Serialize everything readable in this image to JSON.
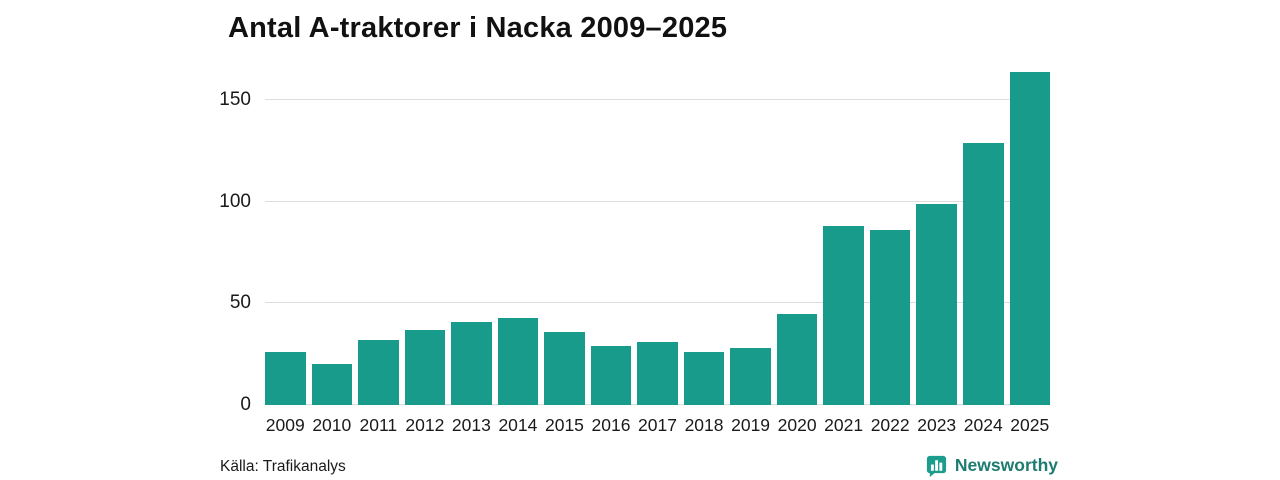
{
  "title": "Antal A-traktorer i Nacka 2009–2025",
  "source": "Källa: Trafikanalys",
  "brand": {
    "name": "Newsworthy",
    "icon": "bar-chart-bubble-icon",
    "text_color": "#1d7b70",
    "icon_color": "#1b9c8c"
  },
  "colors": {
    "bar": "#189b8b",
    "gridline": "#dddddd",
    "text": "#1a1a1a",
    "background": "#ffffff"
  },
  "chart_data": {
    "type": "bar",
    "title": "Antal A-traktorer i Nacka 2009–2025",
    "categories": [
      "2009",
      "2010",
      "2011",
      "2012",
      "2013",
      "2014",
      "2015",
      "2016",
      "2017",
      "2018",
      "2019",
      "2020",
      "2021",
      "2022",
      "2023",
      "2024",
      "2025"
    ],
    "values": [
      26,
      20,
      32,
      37,
      41,
      43,
      36,
      29,
      31,
      26,
      28,
      45,
      88,
      86,
      99,
      129,
      164
    ],
    "xlabel": "",
    "ylabel": "",
    "ylim": [
      0,
      170
    ],
    "yticks": [
      0,
      50,
      100,
      150
    ],
    "grid": true,
    "legend": false,
    "bar_color": "#189b8b"
  }
}
